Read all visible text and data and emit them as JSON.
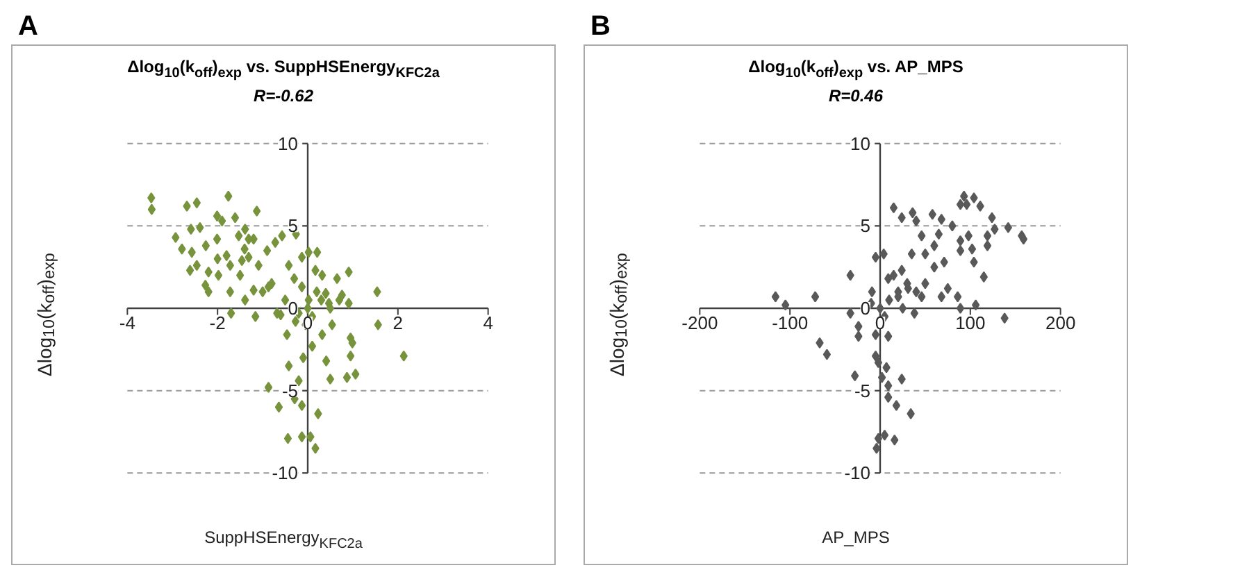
{
  "chart_data": [
    {
      "type": "scatter",
      "title": "Δlog$_{10}$(k$_{off}$)$_{exp}$ vs. SuppHSEnergy$_{KFC2a}$",
      "subtitle": "R=-0.62",
      "xlabel": "SuppHSEnergy$_{KFC2a}$",
      "ylabel": "Δlog$_{10}$(k$_{off}$)$_{exp}$",
      "annotations": [
        "A"
      ],
      "marker": "diamond",
      "grid": "y",
      "xlim": [
        -4,
        4
      ],
      "xticks": [
        -4,
        -2,
        0,
        2,
        4
      ],
      "ylim": [
        -10,
        10
      ],
      "yticks": [
        -10,
        -5,
        0,
        5,
        10
      ],
      "series": [
        {
          "color": "#77933c",
          "x": [
            -3.47,
            -3.46,
            -2.93,
            -2.79,
            -2.68,
            -2.46,
            -2.59,
            -2.39,
            -2.57,
            -2.61,
            -2.46,
            -2.26,
            -2.2,
            -2.27,
            -2.2,
            -1.98,
            -2.01,
            -1.9,
            -2.01,
            -1.76,
            -1.72,
            -1.72,
            -1.7,
            -1.61,
            -1.53,
            -1.39,
            -1.31,
            -1.13,
            -1.2,
            -1.46,
            -1.31,
            -1.39,
            -1.16,
            -1.09,
            -0.87,
            -0.9,
            -0.72,
            -0.57,
            -0.68,
            -0.42,
            -0.26,
            -0.13,
            0.02,
            0.21,
            0.17,
            -0.13,
            0.02,
            0.32,
            0.65,
            0.91,
            0.91,
            0.76,
            0.47,
            1.54,
            1.56,
            2.13,
            -0.46,
            -0.42,
            -0.87,
            -0.64,
            -0.44,
            -0.29,
            -0.2,
            -0.1,
            -0.13,
            -0.13,
            0.06,
            0.17,
            0.23,
            0.1,
            0.41,
            0.5,
            0.32,
            0.54,
            0.95,
            0.99,
            0.95,
            0.87,
            1.06,
            -0.27,
            -0.05,
            -1.0,
            -0.5,
            0.0,
            0.3,
            -0.2,
            0.5,
            -1.5,
            -0.8,
            0.2,
            -0.3,
            0.7,
            -1.2,
            -0.6,
            0.1,
            0.4,
            -1.8,
            -1.4,
            -2.0
          ],
          "values": [
            6.7,
            6.0,
            4.3,
            3.6,
            6.2,
            6.4,
            4.8,
            4.9,
            3.4,
            2.3,
            2.6,
            3.8,
            2.2,
            1.4,
            1.0,
            2.0,
            5.6,
            5.3,
            4.2,
            6.8,
            2.6,
            1.0,
            -0.3,
            5.5,
            4.4,
            4.8,
            4.2,
            5.9,
            4.2,
            2.9,
            3.1,
            0.5,
            -0.5,
            2.6,
            1.3,
            3.5,
            4.0,
            4.4,
            -0.3,
            2.6,
            4.5,
            3.1,
            3.4,
            3.4,
            2.3,
            1.3,
            0.5,
            2.0,
            1.8,
            2.2,
            0.3,
            0.8,
            0.3,
            1.0,
            -1.0,
            -2.9,
            -1.6,
            -3.5,
            -4.8,
            -6.0,
            -7.9,
            -5.5,
            -4.4,
            -3.0,
            -5.9,
            -7.8,
            -7.8,
            -8.5,
            -6.4,
            -2.3,
            -3.2,
            -4.3,
            -1.6,
            -1.0,
            -1.8,
            -2.1,
            -2.9,
            -4.2,
            -4.0,
            -0.8,
            -1.0,
            1.0,
            0.5,
            0.0,
            0.5,
            -0.3,
            0.0,
            2.0,
            1.5,
            1.0,
            1.8,
            0.5,
            1.1,
            -0.4,
            -0.5,
            0.9,
            3.2,
            3.6,
            3.0
          ]
        }
      ]
    },
    {
      "type": "scatter",
      "title": "Δlog$_{10}$(k$_{off}$)$_{exp}$ vs. AP_MPS",
      "subtitle": "R=0.46",
      "xlabel": "AP_MPS",
      "ylabel": "Δlog$_{10}$(k$_{off}$)$_{exp}$",
      "annotations": [
        "B"
      ],
      "marker": "diamond",
      "grid": "y",
      "xlim": [
        -200,
        200
      ],
      "xticks": [
        -200,
        -100,
        0,
        100,
        200
      ],
      "ylim": [
        -10,
        10
      ],
      "yticks": [
        -10,
        -5,
        0,
        5,
        10
      ],
      "series": [
        {
          "color": "#595959",
          "x": [
            -116,
            -105,
            -72,
            -67,
            -59,
            -33,
            -33,
            -24,
            -24,
            -28,
            -5,
            4,
            15,
            24,
            36,
            40,
            58,
            68,
            80,
            89,
            93,
            96,
            104,
            111,
            124,
            127,
            119,
            119,
            142,
            157,
            159,
            89,
            89,
            98,
            102,
            104,
            115,
            106,
            86,
            89,
            138,
            46,
            50,
            60,
            71,
            75,
            68,
            35,
            24,
            9,
            20,
            31,
            46,
            38,
            -9,
            -5,
            9,
            -5,
            -2,
            7,
            24,
            9,
            9,
            18,
            34,
            16,
            5,
            -2,
            -4,
            2,
            0,
            10,
            20,
            30,
            5,
            15,
            40,
            25,
            -10,
            50,
            60,
            65
          ],
          "values": [
            0.7,
            0.2,
            0.7,
            -2.1,
            -2.8,
            2.0,
            -0.3,
            -1.1,
            -1.7,
            -4.1,
            3.1,
            3.3,
            6.1,
            5.5,
            5.8,
            5.3,
            5.7,
            5.4,
            5.0,
            6.3,
            6.8,
            6.3,
            6.7,
            6.2,
            5.5,
            4.8,
            4.4,
            3.8,
            4.9,
            4.4,
            4.2,
            4.1,
            3.5,
            4.4,
            3.6,
            2.8,
            1.9,
            0.2,
            0.7,
            0,
            -0.6,
            4.4,
            3.3,
            2.5,
            2.8,
            1.2,
            0.7,
            3.3,
            2.3,
            1.8,
            0.7,
            1.2,
            0.7,
            -0.3,
            1.0,
            -1.6,
            -1.7,
            -2.9,
            -3.3,
            -3.6,
            -4.3,
            -4.7,
            -5.4,
            -5.9,
            -6.4,
            -8.0,
            -7.7,
            -7.9,
            -8.5,
            -4.2,
            0,
            0.5,
            1,
            1.5,
            -0.5,
            2,
            1,
            0,
            0.3,
            1.5,
            3.8,
            4.5
          ]
        }
      ]
    }
  ]
}
